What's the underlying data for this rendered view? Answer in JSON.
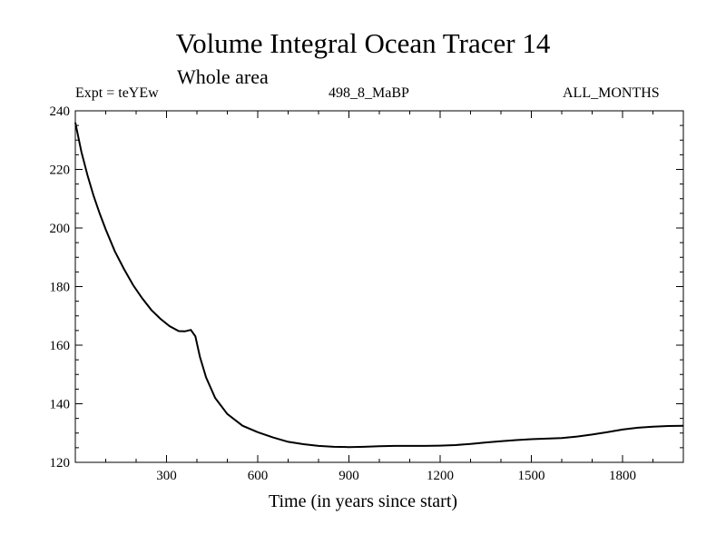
{
  "header": {
    "title": "Volume Integral Ocean Tracer 14",
    "subtitle": "Whole area",
    "expt": "Expt = teYEw",
    "run": "498_8_MaBP",
    "months": "ALL_MONTHS"
  },
  "chart_data": {
    "type": "line",
    "title": "Volume Integral Ocean Tracer 14",
    "xlabel": "Time (in years since start)",
    "ylabel": "",
    "xlim": [
      0,
      2000
    ],
    "ylim": [
      120,
      240
    ],
    "xticks": [
      300,
      600,
      900,
      1200,
      1500,
      1800
    ],
    "yticks": [
      120,
      140,
      160,
      180,
      200,
      220,
      240
    ],
    "series": [
      {
        "name": "Tracer 14",
        "x": [
          0,
          20,
          40,
          60,
          80,
          100,
          130,
          160,
          190,
          220,
          250,
          280,
          310,
          340,
          360,
          380,
          395,
          410,
          430,
          460,
          500,
          550,
          600,
          650,
          700,
          750,
          800,
          850,
          900,
          950,
          1000,
          1050,
          1100,
          1150,
          1200,
          1250,
          1300,
          1350,
          1400,
          1450,
          1500,
          1550,
          1600,
          1650,
          1700,
          1750,
          1800,
          1850,
          1900,
          1950,
          2000
        ],
        "values": [
          236,
          226,
          218,
          211,
          205,
          199.5,
          192,
          186,
          180.5,
          176,
          172,
          169,
          166.5,
          164.8,
          164.7,
          165.2,
          163,
          156,
          149,
          142,
          136.5,
          132.5,
          130.3,
          128.5,
          127,
          126.2,
          125.6,
          125.3,
          125.2,
          125.3,
          125.5,
          125.6,
          125.6,
          125.6,
          125.7,
          125.9,
          126.3,
          126.8,
          127.2,
          127.6,
          127.9,
          128.1,
          128.3,
          128.8,
          129.5,
          130.3,
          131.2,
          131.8,
          132.2,
          132.4,
          132.5
        ]
      }
    ]
  }
}
